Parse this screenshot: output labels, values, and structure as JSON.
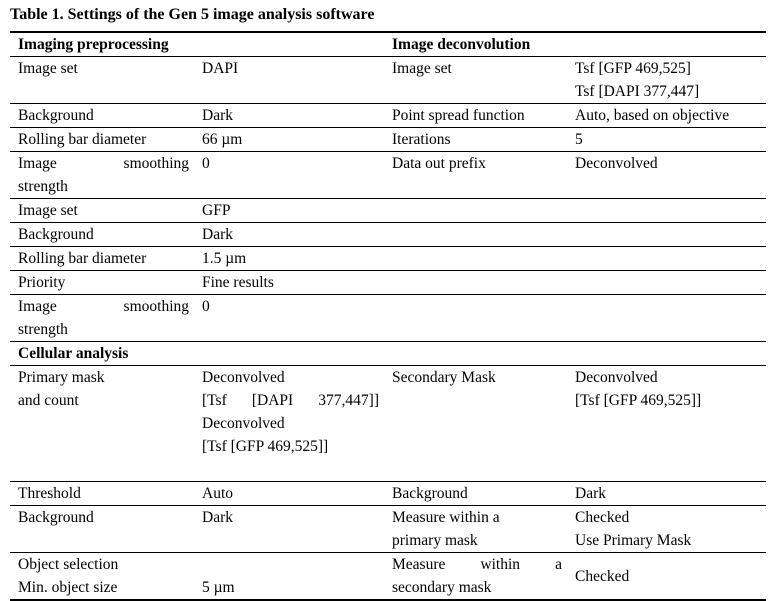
{
  "caption": "Table 1. Settings of the Gen 5 image analysis software",
  "headers": {
    "imaging_preprocessing": "Imaging preprocessing",
    "image_deconvolution": "Image deconvolution",
    "cellular_analysis": "Cellular analysis"
  },
  "pre": {
    "r1": {
      "a": "Image set",
      "b": "DAPI",
      "c": "Image set",
      "d": "Tsf [GFP 469,525]\nTsf [DAPI 377,447]"
    },
    "r2": {
      "a": "Background",
      "b": "Dark",
      "c": "Point spread function",
      "d": "Auto, based on objective"
    },
    "r3": {
      "a": "Rolling bar diameter",
      "b": "66 µm",
      "c": "Iterations",
      "d": "5"
    },
    "r4": {
      "a1": "Image",
      "a2": "smoothing",
      "a3": "strength",
      "b": "0",
      "c": "Data out prefix",
      "d": "Deconvolved"
    },
    "r5": {
      "a": "Image set",
      "b": "GFP"
    },
    "r6": {
      "a": "Background",
      "b": "Dark"
    },
    "r7": {
      "a": "Rolling bar diameter",
      "b": "1.5 µm"
    },
    "r8": {
      "a": "Priority",
      "b": "Fine results"
    },
    "r9": {
      "a1": "Image",
      "a2": "smoothing",
      "a3": "strength",
      "b": "0"
    }
  },
  "cell": {
    "r1": {
      "a": "Primary mask\nand count",
      "b1": "Deconvolved",
      "b2a": "[Tsf",
      "b2b": "[DAPI",
      "b2c": "377,447]]",
      "b3": "Deconvolved\n[Tsf [GFP 469,525]]",
      "c": "Secondary Mask",
      "d": "Deconvolved\n[Tsf [GFP 469,525]]"
    },
    "r2": {
      "a": "Threshold",
      "b": "Auto",
      "c": "Background",
      "d": "Dark"
    },
    "r3": {
      "a": "Background",
      "b": "Dark",
      "c": "Measure within a\nprimary mask",
      "d": "Checked\nUse Primary Mask"
    },
    "r4": {
      "a": "Object selection\nMin. object size",
      "b": "\n5 µm",
      "c1": "Measure",
      "c2": "within",
      "c3": "a",
      "c4": "secondary mask",
      "d": "Checked"
    }
  }
}
